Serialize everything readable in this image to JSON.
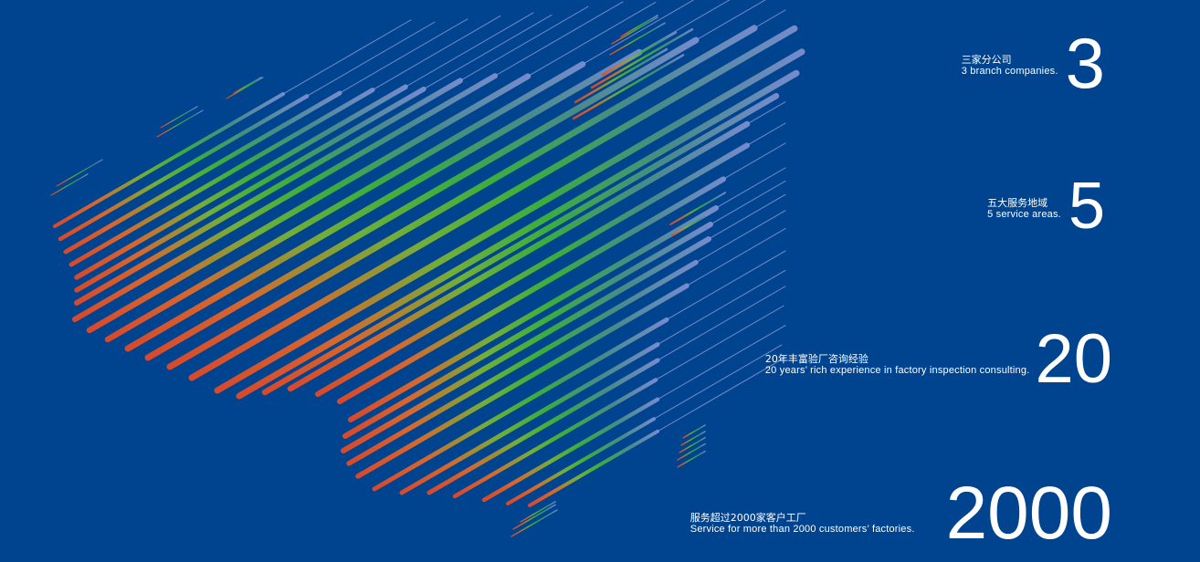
{
  "colors": {
    "background": "#00438e",
    "gradient_low": "#e2452a",
    "gradient_mid": "#3fb43a",
    "gradient_high": "#6a86c8",
    "text": "#ffffff"
  },
  "map": {
    "icon": "china-map-striped"
  },
  "stats": [
    {
      "number": "3",
      "cn": "三家分公司",
      "en": "3 branch companies."
    },
    {
      "number": "5",
      "cn": "五大服务地域",
      "en": "5  service  areas."
    },
    {
      "number": "20",
      "cn": "20年丰富验厂咨询经验",
      "en": "20 years’  rich  experience  in  factory  inspection  consulting."
    },
    {
      "number": "2000",
      "cn": "服务超过2000家客户工厂",
      "en": "Service for more than 2000 customers’ factories."
    }
  ]
}
